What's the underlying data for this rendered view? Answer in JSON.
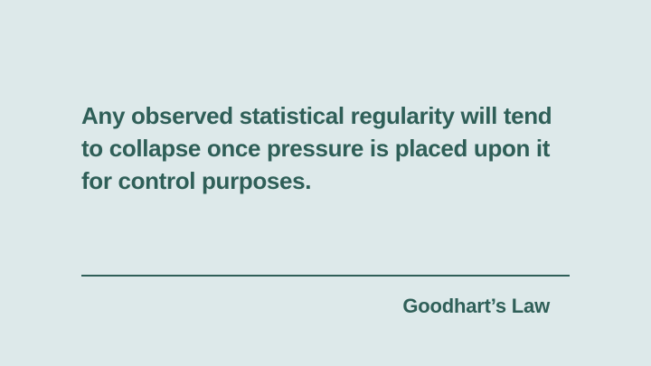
{
  "slide": {
    "quote_text": "Any observed statistical regularity will tend to collapse once pressure is placed upon it for control purposes.",
    "attribution": "Goodhart’s Law"
  },
  "colors": {
    "background": "#dde9ea",
    "accent": "#2f5f58"
  }
}
